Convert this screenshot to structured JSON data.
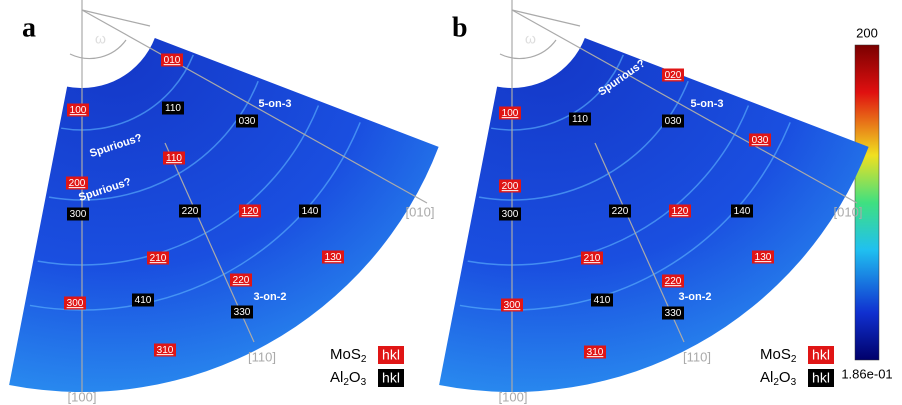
{
  "panels": [
    {
      "label": "a",
      "omega": "ω",
      "red_labels": [
        "010",
        "100",
        "110",
        "200",
        "120",
        "210",
        "220",
        "300",
        "130",
        "310"
      ],
      "black_labels": [
        "110",
        "030",
        "300",
        "220",
        "140",
        "410",
        "330"
      ],
      "annotations": [
        "5-on-3",
        "Spurious?",
        "Spurious?",
        "3-on-2"
      ],
      "directions": [
        "[010]",
        "[110]",
        "[100]"
      ]
    },
    {
      "label": "b",
      "omega": "ω",
      "red_labels": [
        "100",
        "020",
        "030",
        "200",
        "120",
        "210",
        "220",
        "300",
        "130",
        "310"
      ],
      "black_labels": [
        "110",
        "030",
        "300",
        "220",
        "140",
        "410",
        "330"
      ],
      "annotations": [
        "Spurious?",
        "5-on-3",
        "3-on-2"
      ],
      "directions": [
        "[010]",
        "[110]",
        "[100]"
      ]
    }
  ],
  "legend": [
    {
      "parts": [
        "MoS",
        "2"
      ],
      "tag": "hkl"
    },
    {
      "parts": [
        "Al",
        "2",
        "O",
        "3"
      ],
      "tag": "hkl"
    }
  ],
  "colorbar": {
    "max": "200",
    "min": "1.86e-01"
  }
}
